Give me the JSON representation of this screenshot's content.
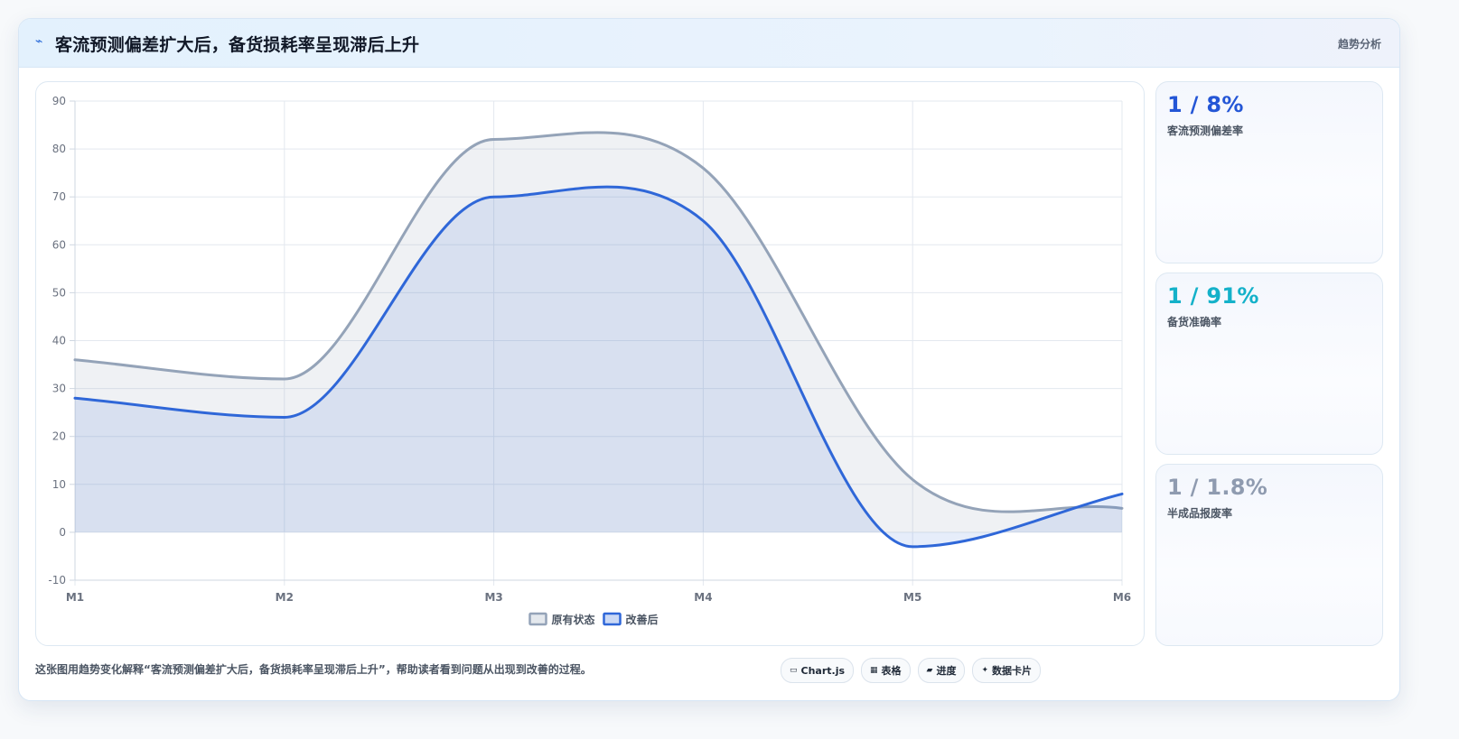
{
  "header": {
    "icon": "lightning-icon",
    "title": "客流预测偏差扩大后，备货损耗率呈现滞后上升",
    "tag": "趋势分析"
  },
  "chart_data": {
    "type": "area",
    "x": [
      "M1",
      "M2",
      "M3",
      "M4",
      "M5",
      "M6"
    ],
    "ylim": [
      -10,
      90
    ],
    "yticks": [
      -10,
      0,
      10,
      20,
      30,
      40,
      50,
      60,
      70,
      80,
      90
    ],
    "grid": true,
    "legend_position": "bottom",
    "series": [
      {
        "name": "原有状态",
        "values": [
          36,
          32,
          82,
          76,
          11,
          5
        ],
        "color": "#94a3b8",
        "fill": "rgba(148,163,184,0.15)"
      },
      {
        "name": "改善后",
        "values": [
          28,
          24,
          70,
          65,
          -3,
          8
        ],
        "color": "#2f67d8",
        "fill": "rgba(47,103,216,0.12)"
      }
    ]
  },
  "kpis": [
    {
      "value": "1 / 8%",
      "label": "客流预测偏差率",
      "color": "#2456d6"
    },
    {
      "value": "1 / 91%",
      "label": "备货准确率",
      "color": "#14b1c9"
    },
    {
      "value": "1 / 1.8%",
      "label": "半成品报废率",
      "color": "#8f9bb0"
    }
  ],
  "footer": {
    "description": "这张图用趋势变化解释“客流预测偏差扩大后，备货损耗率呈现滞后上升”，帮助读者看到问题从出现到改善的过程。"
  },
  "chips": [
    {
      "icon": "chart-icon",
      "glyph": "▭",
      "label": "Chart.js"
    },
    {
      "icon": "table-icon",
      "glyph": "▦",
      "label": "表格"
    },
    {
      "icon": "progress-icon",
      "glyph": "▰",
      "label": "进度"
    },
    {
      "icon": "card-icon",
      "glyph": "✦",
      "label": "数据卡片"
    }
  ]
}
